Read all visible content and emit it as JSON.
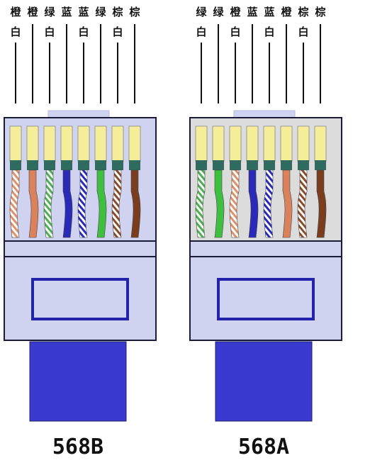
{
  "connectors": [
    {
      "id": "568b",
      "name": "568B",
      "body_color": "#cfd3ef",
      "latch_color": "#cfd3ef",
      "wires": [
        {
          "top": "橙",
          "bottom": "白",
          "color": "#e0906a",
          "striped": true
        },
        {
          "top": "橙",
          "bottom": "",
          "color": "#d9825c",
          "striped": false
        },
        {
          "top": "绿",
          "bottom": "白",
          "color": "#4caf50",
          "striped": true
        },
        {
          "top": "蓝",
          "bottom": "",
          "color": "#2a2ab8",
          "striped": false
        },
        {
          "top": "蓝",
          "bottom": "白",
          "color": "#2a2ab8",
          "striped": true
        },
        {
          "top": "绿",
          "bottom": "",
          "color": "#3fbf3f",
          "striped": false
        },
        {
          "top": "棕",
          "bottom": "白",
          "color": "#8b4a2a",
          "striped": true
        },
        {
          "top": "棕",
          "bottom": "",
          "color": "#7a3e1e",
          "striped": false
        }
      ]
    },
    {
      "id": "568a",
      "name": "568A",
      "body_color": "#dcdcdc",
      "latch_color": "#cfd3ef",
      "wires": [
        {
          "top": "绿",
          "bottom": "白",
          "color": "#4caf50",
          "striped": true
        },
        {
          "top": "绿",
          "bottom": "",
          "color": "#3fbf3f",
          "striped": false
        },
        {
          "top": "橙",
          "bottom": "白",
          "color": "#e0906a",
          "striped": true
        },
        {
          "top": "蓝",
          "bottom": "",
          "color": "#2a2ab8",
          "striped": false
        },
        {
          "top": "蓝",
          "bottom": "白",
          "color": "#2a2ab8",
          "striped": true
        },
        {
          "top": "橙",
          "bottom": "",
          "color": "#d9825c",
          "striped": false
        },
        {
          "top": "棕",
          "bottom": "白",
          "color": "#8b4a2a",
          "striped": true
        },
        {
          "top": "棕",
          "bottom": "",
          "color": "#7a3e1e",
          "striped": false
        }
      ]
    }
  ],
  "colors": {
    "contact": "#f4ee9a",
    "contact_band": "#2f6b5e",
    "cable": "#3a3ad0",
    "outline": "#1a1a3a",
    "window": "#2222aa"
  }
}
